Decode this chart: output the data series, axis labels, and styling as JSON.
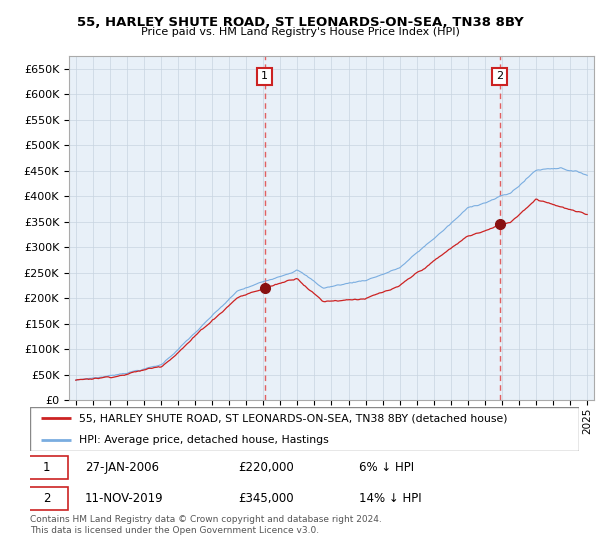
{
  "title": "55, HARLEY SHUTE ROAD, ST LEONARDS-ON-SEA, TN38 8BY",
  "subtitle": "Price paid vs. HM Land Registry's House Price Index (HPI)",
  "ylim": [
    0,
    675000
  ],
  "yticks": [
    0,
    50000,
    100000,
    150000,
    200000,
    250000,
    300000,
    350000,
    400000,
    450000,
    500000,
    550000,
    600000,
    650000
  ],
  "ytick_labels": [
    "£0",
    "£50K",
    "£100K",
    "£150K",
    "£200K",
    "£250K",
    "£300K",
    "£350K",
    "£400K",
    "£450K",
    "£500K",
    "£550K",
    "£600K",
    "£650K"
  ],
  "hpi_color": "#7aade0",
  "price_color": "#cc2222",
  "vline_color": "#e06060",
  "chart_bg": "#e8f0f8",
  "annotation1_date": 2006.08,
  "annotation1_value": 220000,
  "annotation2_date": 2019.87,
  "annotation2_value": 345000,
  "legend_line1": "55, HARLEY SHUTE ROAD, ST LEONARDS-ON-SEA, TN38 8BY (detached house)",
  "legend_line2": "HPI: Average price, detached house, Hastings",
  "note1_date": "27-JAN-2006",
  "note1_price": "£220,000",
  "note1_hpi": "6% ↓ HPI",
  "note2_date": "11-NOV-2019",
  "note2_price": "£345,000",
  "note2_hpi": "14% ↓ HPI",
  "footer": "Contains HM Land Registry data © Crown copyright and database right 2024.\nThis data is licensed under the Open Government Licence v3.0.",
  "background_color": "#ffffff",
  "grid_color": "#c8d4e0"
}
